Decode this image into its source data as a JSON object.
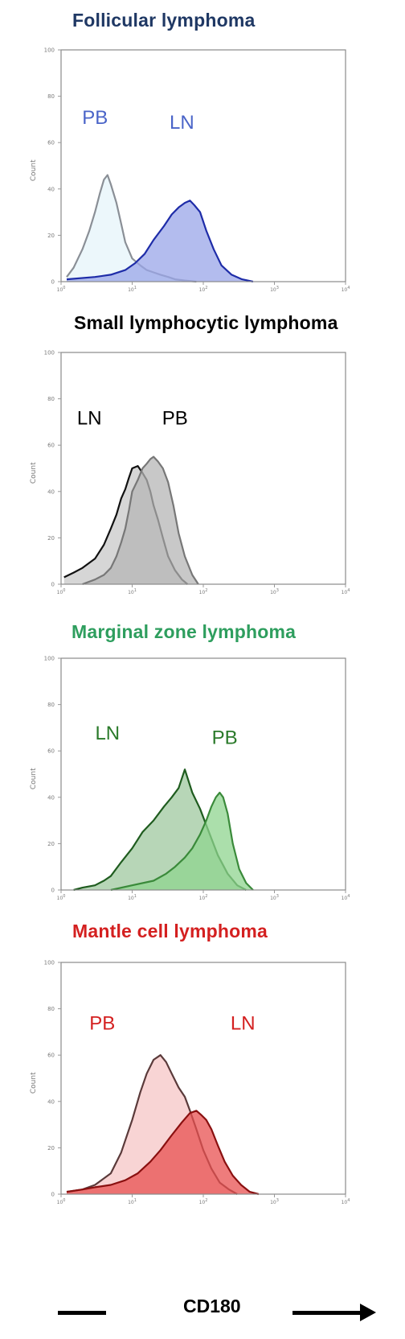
{
  "figure": {
    "axis_caption": "CD180"
  },
  "chart_data": [
    {
      "type": "area",
      "title": "Follicular lymphoma",
      "ylabel": "Count",
      "xlabel": "",
      "ylim": [
        0,
        100
      ],
      "yticks": [
        "0",
        "20",
        "40",
        "60",
        "80",
        "100"
      ],
      "xticks": [
        "10^0",
        "10^1",
        "10^2",
        "10^3",
        "10^4"
      ],
      "xscale": "log",
      "xlim": [
        1,
        10000
      ],
      "colors": {
        "title": "#1f3864"
      },
      "series": [
        {
          "name": "PB",
          "color": "#8a8f96",
          "fill": "#e6f4fa",
          "label_color": "#4a64c8",
          "label_pos": {
            "x": 3.0,
            "y": 68
          },
          "x": [
            1.2,
            1.5,
            2,
            2.5,
            3,
            3.5,
            4,
            4.5,
            5,
            6,
            7,
            8,
            10,
            13,
            16,
            20,
            25,
            32,
            40,
            55,
            80
          ],
          "y": [
            2,
            6,
            14,
            22,
            30,
            38,
            44,
            46,
            42,
            34,
            25,
            17,
            10,
            7,
            5,
            4,
            3,
            2,
            1,
            0.5,
            0
          ]
        },
        {
          "name": "LN",
          "color": "#1e2ca8",
          "fill": "#9aa6e8",
          "label_color": "#4a64c8",
          "label_pos": {
            "x": 50,
            "y": 66
          },
          "x": [
            1.2,
            3,
            5,
            8,
            11,
            15,
            20,
            28,
            36,
            45,
            55,
            65,
            75,
            90,
            110,
            140,
            180,
            250,
            350,
            500
          ],
          "y": [
            1,
            2,
            3,
            5,
            8,
            12,
            18,
            24,
            29,
            32,
            34,
            35,
            33,
            30,
            22,
            14,
            7,
            3,
            1,
            0
          ]
        }
      ]
    },
    {
      "type": "area",
      "title": "Small lymphocytic lymphoma",
      "ylabel": "Count",
      "xlabel": "",
      "ylim": [
        0,
        100
      ],
      "yticks": [
        "0",
        "20",
        "40",
        "60",
        "80",
        "100"
      ],
      "xticks": [
        "10^0",
        "10^1",
        "10^2",
        "10^3",
        "10^4"
      ],
      "xscale": "log",
      "xlim": [
        1,
        10000
      ],
      "colors": {
        "title": "#000000"
      },
      "series": [
        {
          "name": "LN",
          "color": "#111111",
          "fill": "#c8c8c8",
          "label_color": "#000000",
          "label_pos": {
            "x": 2.5,
            "y": 69
          },
          "x": [
            1.1,
            1.5,
            2,
            3,
            4,
            5,
            6,
            7,
            8,
            9,
            10,
            12,
            14,
            16,
            18,
            20,
            23,
            27,
            32,
            40,
            50,
            60
          ],
          "y": [
            3,
            5,
            7,
            11,
            17,
            24,
            30,
            37,
            41,
            46,
            50,
            51,
            48,
            45,
            40,
            34,
            28,
            20,
            12,
            6,
            2,
            0
          ]
        },
        {
          "name": "PB",
          "color": "#777777",
          "fill": "#b6b6b6",
          "label_color": "#000000",
          "label_pos": {
            "x": 40,
            "y": 69
          },
          "x": [
            2,
            3,
            4,
            5,
            6,
            7,
            8,
            9,
            10,
            12,
            14,
            16,
            18,
            20,
            23,
            27,
            32,
            38,
            45,
            55,
            70,
            85
          ],
          "y": [
            0,
            2,
            4,
            7,
            12,
            18,
            24,
            32,
            40,
            45,
            50,
            52,
            54,
            55,
            53,
            50,
            44,
            34,
            22,
            12,
            4,
            0
          ]
        }
      ]
    },
    {
      "type": "area",
      "title": "Marginal zone lymphoma",
      "ylabel": "Count",
      "xlabel": "",
      "ylim": [
        0,
        100
      ],
      "yticks": [
        "0",
        "20",
        "40",
        "60",
        "80",
        "100"
      ],
      "xticks": [
        "10^0",
        "10^1",
        "10^2",
        "10^3",
        "10^4"
      ],
      "xscale": "log",
      "xlim": [
        1,
        10000
      ],
      "colors": {
        "title": "#2e9e5e"
      },
      "series": [
        {
          "name": "LN",
          "color": "#1f5c1f",
          "fill": "#9fc89f",
          "label_color": "#2a7a2a",
          "label_pos": {
            "x": 4.5,
            "y": 65
          },
          "x": [
            1.5,
            2,
            3,
            4,
            5,
            7,
            10,
            14,
            20,
            28,
            36,
            45,
            55,
            70,
            90,
            120,
            160,
            220,
            300,
            400
          ],
          "y": [
            0,
            1,
            2,
            4,
            6,
            12,
            18,
            25,
            30,
            36,
            40,
            44,
            52,
            42,
            35,
            25,
            15,
            7,
            2,
            0
          ]
        },
        {
          "name": "PB",
          "color": "#3a8a3a",
          "fill": "#8fd48f",
          "label_color": "#2a7a2a",
          "label_pos": {
            "x": 200,
            "y": 63
          },
          "x": [
            5,
            10,
            20,
            30,
            40,
            55,
            70,
            90,
            110,
            130,
            150,
            170,
            190,
            220,
            260,
            320,
            400,
            500
          ],
          "y": [
            0,
            2,
            4,
            7,
            10,
            14,
            18,
            24,
            30,
            36,
            40,
            42,
            40,
            33,
            20,
            9,
            3,
            0
          ]
        }
      ]
    },
    {
      "type": "area",
      "title": "Mantle cell lymphoma",
      "ylabel": "Count",
      "xlabel": "",
      "ylim": [
        0,
        100
      ],
      "yticks": [
        "0",
        "20",
        "40",
        "60",
        "80",
        "100"
      ],
      "xticks": [
        "10^0",
        "10^1",
        "10^2",
        "10^3",
        "10^4"
      ],
      "xscale": "log",
      "xlim": [
        1,
        10000
      ],
      "colors": {
        "title": "#d42020"
      },
      "series": [
        {
          "name": "PB",
          "color": "#5a3a3a",
          "fill": "#f6c6c6",
          "label_color": "#d42020",
          "label_pos": {
            "x": 3.8,
            "y": 71
          },
          "x": [
            1.2,
            2,
            3,
            5,
            7,
            10,
            13,
            16,
            20,
            25,
            30,
            36,
            45,
            55,
            65,
            80,
            100,
            130,
            170,
            230,
            300
          ],
          "y": [
            1,
            2,
            4,
            9,
            18,
            32,
            44,
            52,
            58,
            60,
            57,
            52,
            46,
            42,
            36,
            28,
            19,
            11,
            5,
            2,
            0
          ]
        },
        {
          "name": "LN",
          "color": "#8a1010",
          "fill": "#e85050",
          "label_color": "#d42020",
          "label_pos": {
            "x": 360,
            "y": 71
          },
          "x": [
            1.2,
            2,
            3,
            5,
            8,
            12,
            18,
            25,
            35,
            50,
            65,
            80,
            95,
            110,
            130,
            160,
            200,
            260,
            340,
            450,
            600
          ],
          "y": [
            1,
            2,
            3,
            4,
            6,
            9,
            14,
            19,
            25,
            31,
            35,
            36,
            34,
            32,
            28,
            21,
            14,
            8,
            4,
            1,
            0
          ]
        }
      ]
    }
  ]
}
